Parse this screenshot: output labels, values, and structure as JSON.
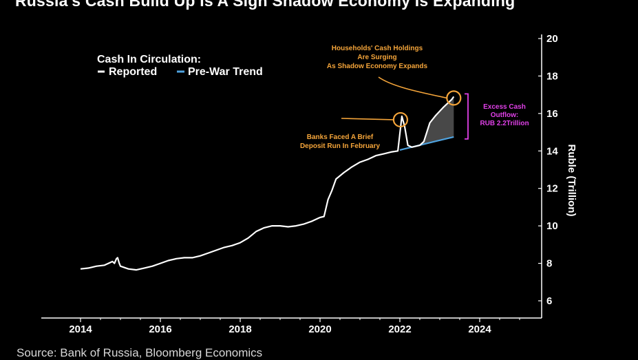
{
  "title": "Russia's Cash Build Up Is A Sign Shadow Economy Is Expanding",
  "source": "Source: Bank of Russia, Bloomberg Economics",
  "colors": {
    "reported": "#ffffff",
    "trend": "#4fa3e0",
    "annotation": "#f5a53a",
    "excess": "#e040e8",
    "fill": "#555555"
  },
  "chart_data": {
    "type": "line",
    "title": "Russia's Cash Build Up Is A Sign Shadow Economy Is Expanding",
    "xlabel": "",
    "ylabel": "Ruble (Trillion)",
    "xlim": [
      2014,
      2025.2
    ],
    "ylim": [
      5,
      20
    ],
    "xticks": [
      "2014",
      "2016",
      "2018",
      "2020",
      "2022",
      "2024"
    ],
    "yticks": [
      "6",
      "8",
      "10",
      "12",
      "14",
      "16",
      "18",
      "20"
    ],
    "legend_title": "Cash In Circulation:",
    "series": [
      {
        "name": "Reported",
        "points": [
          [
            2014.0,
            7.7
          ],
          [
            2014.2,
            7.75
          ],
          [
            2014.4,
            7.85
          ],
          [
            2014.6,
            7.9
          ],
          [
            2014.75,
            8.05
          ],
          [
            2014.8,
            8.1
          ],
          [
            2014.85,
            8.0
          ],
          [
            2014.9,
            8.25
          ],
          [
            2014.93,
            8.3
          ],
          [
            2014.97,
            8.0
          ],
          [
            2015.0,
            7.85
          ],
          [
            2015.2,
            7.7
          ],
          [
            2015.4,
            7.65
          ],
          [
            2015.6,
            7.75
          ],
          [
            2015.8,
            7.85
          ],
          [
            2016.0,
            8.0
          ],
          [
            2016.2,
            8.15
          ],
          [
            2016.4,
            8.25
          ],
          [
            2016.6,
            8.3
          ],
          [
            2016.8,
            8.3
          ],
          [
            2017.0,
            8.4
          ],
          [
            2017.2,
            8.55
          ],
          [
            2017.4,
            8.7
          ],
          [
            2017.6,
            8.85
          ],
          [
            2017.8,
            8.95
          ],
          [
            2018.0,
            9.1
          ],
          [
            2018.2,
            9.35
          ],
          [
            2018.4,
            9.7
          ],
          [
            2018.6,
            9.9
          ],
          [
            2018.8,
            10.0
          ],
          [
            2019.0,
            10.0
          ],
          [
            2019.2,
            9.95
          ],
          [
            2019.4,
            10.0
          ],
          [
            2019.6,
            10.1
          ],
          [
            2019.8,
            10.25
          ],
          [
            2020.0,
            10.45
          ],
          [
            2020.1,
            10.5
          ],
          [
            2020.2,
            11.4
          ],
          [
            2020.3,
            11.9
          ],
          [
            2020.4,
            12.5
          ],
          [
            2020.6,
            12.85
          ],
          [
            2020.8,
            13.15
          ],
          [
            2021.0,
            13.4
          ],
          [
            2021.2,
            13.55
          ],
          [
            2021.4,
            13.75
          ],
          [
            2021.6,
            13.85
          ],
          [
            2021.8,
            13.95
          ],
          [
            2021.95,
            14.0
          ],
          [
            2022.05,
            15.85
          ],
          [
            2022.12,
            15.3
          ],
          [
            2022.2,
            14.3
          ],
          [
            2022.3,
            14.2
          ],
          [
            2022.5,
            14.3
          ],
          [
            2022.6,
            14.5
          ],
          [
            2022.75,
            15.5
          ],
          [
            2022.9,
            15.9
          ],
          [
            2023.1,
            16.35
          ],
          [
            2023.3,
            16.75
          ],
          [
            2023.35,
            16.9
          ]
        ]
      },
      {
        "name": "Pre-War Trend",
        "points": [
          [
            2022.0,
            14.05
          ],
          [
            2023.35,
            14.75
          ]
        ]
      }
    ],
    "annotations": [
      {
        "text": [
          "Households' Cash Holdings",
          "Are Surging",
          "As Shadow Economy Expands"
        ],
        "x": 2023.35,
        "y": 16.9
      },
      {
        "text": [
          "Banks Faced A Brief",
          "Deposit Run In February"
        ],
        "x": 2022.05,
        "y": 15.85
      },
      {
        "text": [
          "Excess Cash",
          "Outflow:",
          "RUB 2.2Trillion"
        ],
        "range": [
          14.75,
          16.9
        ]
      }
    ]
  }
}
